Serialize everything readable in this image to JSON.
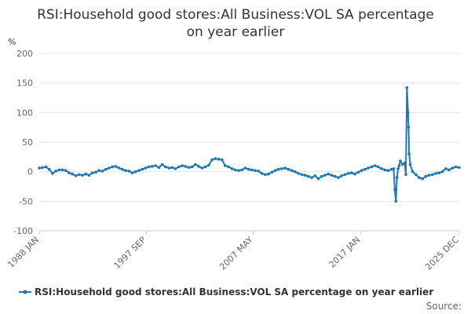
{
  "chart_data": {
    "type": "line",
    "title_lines": [
      "RSI:Household good stores:All Business:VOL SA percentage",
      "on year earlier"
    ],
    "ylabel": "%",
    "ylim": [
      -100,
      200
    ],
    "yticks": [
      -100,
      -50,
      0,
      50,
      100,
      150,
      200
    ],
    "x_range": [
      1988.0,
      2025.92
    ],
    "xticks": [
      {
        "label": "1988 JAN",
        "x": 1988.0
      },
      {
        "label": "1997 SEP",
        "x": 1997.67
      },
      {
        "label": "2007 MAY",
        "x": 2007.33
      },
      {
        "label": "2017 JAN",
        "x": 2017.0
      },
      {
        "label": "2025 DEC",
        "x": 2025.92
      }
    ],
    "series": [
      {
        "name": "RSI:Household good stores:All Business:VOL SA percentage on year earlier",
        "color": "#1f77b4",
        "points": [
          [
            1988.0,
            6
          ],
          [
            1988.3,
            7
          ],
          [
            1988.6,
            8
          ],
          [
            1988.9,
            4
          ],
          [
            1989.2,
            -3
          ],
          [
            1989.5,
            1
          ],
          [
            1989.8,
            3
          ],
          [
            1990.1,
            3
          ],
          [
            1990.4,
            2
          ],
          [
            1990.7,
            -2
          ],
          [
            1991.0,
            -4
          ],
          [
            1991.3,
            -7
          ],
          [
            1991.6,
            -5
          ],
          [
            1991.9,
            -6
          ],
          [
            1992.2,
            -4
          ],
          [
            1992.5,
            -6
          ],
          [
            1992.8,
            -2
          ],
          [
            1993.1,
            -1
          ],
          [
            1993.4,
            2
          ],
          [
            1993.7,
            1
          ],
          [
            1994.0,
            4
          ],
          [
            1994.3,
            6
          ],
          [
            1994.6,
            8
          ],
          [
            1994.9,
            9
          ],
          [
            1995.2,
            6
          ],
          [
            1995.5,
            4
          ],
          [
            1995.8,
            2
          ],
          [
            1996.1,
            1
          ],
          [
            1996.4,
            -2
          ],
          [
            1996.7,
            0
          ],
          [
            1997.0,
            2
          ],
          [
            1997.3,
            4
          ],
          [
            1997.6,
            6
          ],
          [
            1997.9,
            8
          ],
          [
            1998.2,
            9
          ],
          [
            1998.5,
            10
          ],
          [
            1998.8,
            7
          ],
          [
            1999.1,
            12
          ],
          [
            1999.4,
            8
          ],
          [
            1999.7,
            6
          ],
          [
            2000.0,
            7
          ],
          [
            2000.3,
            5
          ],
          [
            2000.6,
            8
          ],
          [
            2000.9,
            10
          ],
          [
            2001.2,
            9
          ],
          [
            2001.5,
            7
          ],
          [
            2001.8,
            8
          ],
          [
            2002.1,
            12
          ],
          [
            2002.4,
            9
          ],
          [
            2002.7,
            6
          ],
          [
            2003.0,
            8
          ],
          [
            2003.3,
            11
          ],
          [
            2003.6,
            20
          ],
          [
            2003.9,
            22
          ],
          [
            2004.2,
            21
          ],
          [
            2004.5,
            20
          ],
          [
            2004.8,
            10
          ],
          [
            2005.1,
            8
          ],
          [
            2005.4,
            5
          ],
          [
            2005.7,
            3
          ],
          [
            2006.0,
            2
          ],
          [
            2006.3,
            3
          ],
          [
            2006.6,
            6
          ],
          [
            2006.9,
            4
          ],
          [
            2007.2,
            3
          ],
          [
            2007.5,
            2
          ],
          [
            2007.8,
            1
          ],
          [
            2008.1,
            -3
          ],
          [
            2008.4,
            -5
          ],
          [
            2008.7,
            -4
          ],
          [
            2009.0,
            -1
          ],
          [
            2009.3,
            2
          ],
          [
            2009.6,
            4
          ],
          [
            2009.9,
            5
          ],
          [
            2010.2,
            6
          ],
          [
            2010.5,
            4
          ],
          [
            2010.8,
            2
          ],
          [
            2011.1,
            0
          ],
          [
            2011.4,
            -3
          ],
          [
            2011.7,
            -5
          ],
          [
            2012.0,
            -6
          ],
          [
            2012.3,
            -8
          ],
          [
            2012.6,
            -10
          ],
          [
            2012.9,
            -7
          ],
          [
            2013.2,
            -12
          ],
          [
            2013.5,
            -8
          ],
          [
            2013.8,
            -6
          ],
          [
            2014.1,
            -4
          ],
          [
            2014.4,
            -6
          ],
          [
            2014.7,
            -8
          ],
          [
            2015.0,
            -10
          ],
          [
            2015.3,
            -7
          ],
          [
            2015.6,
            -5
          ],
          [
            2015.9,
            -3
          ],
          [
            2016.2,
            -2
          ],
          [
            2016.5,
            -4
          ],
          [
            2016.8,
            -1
          ],
          [
            2017.1,
            2
          ],
          [
            2017.4,
            4
          ],
          [
            2017.7,
            6
          ],
          [
            2018.0,
            8
          ],
          [
            2018.3,
            10
          ],
          [
            2018.6,
            8
          ],
          [
            2018.9,
            5
          ],
          [
            2019.2,
            3
          ],
          [
            2019.5,
            2
          ],
          [
            2019.8,
            4
          ],
          [
            2020.0,
            5
          ],
          [
            2020.1,
            -30
          ],
          [
            2020.2,
            -50
          ],
          [
            2020.3,
            -10
          ],
          [
            2020.4,
            5
          ],
          [
            2020.5,
            10
          ],
          [
            2020.6,
            18
          ],
          [
            2020.8,
            12
          ],
          [
            2021.0,
            15
          ],
          [
            2021.1,
            -5
          ],
          [
            2021.2,
            142
          ],
          [
            2021.3,
            100
          ],
          [
            2021.35,
            75
          ],
          [
            2021.4,
            30
          ],
          [
            2021.5,
            12
          ],
          [
            2021.7,
            0
          ],
          [
            2022.0,
            -5
          ],
          [
            2022.3,
            -10
          ],
          [
            2022.6,
            -12
          ],
          [
            2022.9,
            -8
          ],
          [
            2023.2,
            -6
          ],
          [
            2023.5,
            -5
          ],
          [
            2023.8,
            -3
          ],
          [
            2024.1,
            -2
          ],
          [
            2024.4,
            0
          ],
          [
            2024.7,
            5
          ],
          [
            2025.0,
            3
          ],
          [
            2025.3,
            6
          ],
          [
            2025.6,
            8
          ],
          [
            2025.92,
            7
          ]
        ]
      }
    ]
  },
  "footer": {
    "source_label": "Source:"
  }
}
